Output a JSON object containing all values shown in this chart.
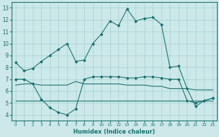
{
  "xlabel": "Humidex (Indice chaleur)",
  "bg_color": "#cce8e8",
  "grid_color": "#aad4d4",
  "line_color": "#1a7070",
  "xlim": [
    -0.5,
    23.5
  ],
  "ylim": [
    3.5,
    13.5
  ],
  "xticks": [
    0,
    1,
    2,
    3,
    4,
    5,
    6,
    7,
    8,
    9,
    10,
    11,
    12,
    13,
    14,
    15,
    16,
    17,
    18,
    19,
    20,
    21,
    22,
    23
  ],
  "yticks": [
    4,
    5,
    6,
    7,
    8,
    9,
    10,
    11,
    12,
    13
  ],
  "series1_x": [
    0,
    1,
    2,
    3,
    4,
    5,
    6,
    7,
    8,
    9,
    10,
    11,
    12,
    13,
    14,
    15,
    16,
    17,
    18,
    19,
    20,
    21,
    22,
    23
  ],
  "series1_y": [
    8.4,
    7.7,
    7.9,
    8.5,
    9.0,
    9.5,
    10.0,
    8.5,
    8.6,
    10.0,
    10.8,
    11.9,
    11.5,
    12.9,
    11.9,
    12.1,
    12.2,
    11.6,
    8.0,
    8.1,
    6.2,
    4.7,
    5.2,
    5.4
  ],
  "series2_x": [
    0,
    1,
    2,
    3,
    4,
    5,
    6,
    7,
    8,
    9,
    10,
    11,
    12,
    13,
    14,
    15,
    16,
    17,
    18,
    19,
    20,
    21,
    22,
    23
  ],
  "series2_y": [
    6.5,
    6.6,
    6.6,
    6.5,
    6.5,
    6.5,
    6.5,
    6.8,
    6.6,
    6.6,
    6.6,
    6.6,
    6.6,
    6.5,
    6.5,
    6.5,
    6.4,
    6.4,
    6.2,
    6.2,
    6.2,
    6.1,
    6.1,
    6.1
  ],
  "series3_x": [
    0,
    1,
    2,
    3,
    4,
    5,
    6,
    7,
    8,
    9,
    10,
    11,
    12,
    13,
    14,
    15,
    16,
    17,
    18,
    19,
    20,
    21,
    22,
    23
  ],
  "series3_y": [
    7.0,
    7.0,
    6.6,
    5.3,
    4.6,
    4.2,
    4.0,
    4.5,
    7.0,
    7.2,
    7.2,
    7.2,
    7.2,
    7.1,
    7.1,
    7.2,
    7.2,
    7.1,
    7.0,
    7.0,
    5.2,
    5.0,
    5.2,
    5.4
  ],
  "series4_x": [
    0,
    1,
    2,
    3,
    4,
    5,
    6,
    7,
    8,
    9,
    10,
    11,
    12,
    13,
    14,
    15,
    16,
    17,
    18,
    19,
    20,
    21,
    22,
    23
  ],
  "series4_y": [
    5.2,
    5.2,
    5.2,
    5.2,
    5.2,
    5.2,
    5.2,
    5.2,
    5.2,
    5.2,
    5.2,
    5.2,
    5.2,
    5.2,
    5.2,
    5.2,
    5.2,
    5.2,
    5.2,
    5.2,
    5.2,
    5.2,
    5.2,
    5.2
  ]
}
